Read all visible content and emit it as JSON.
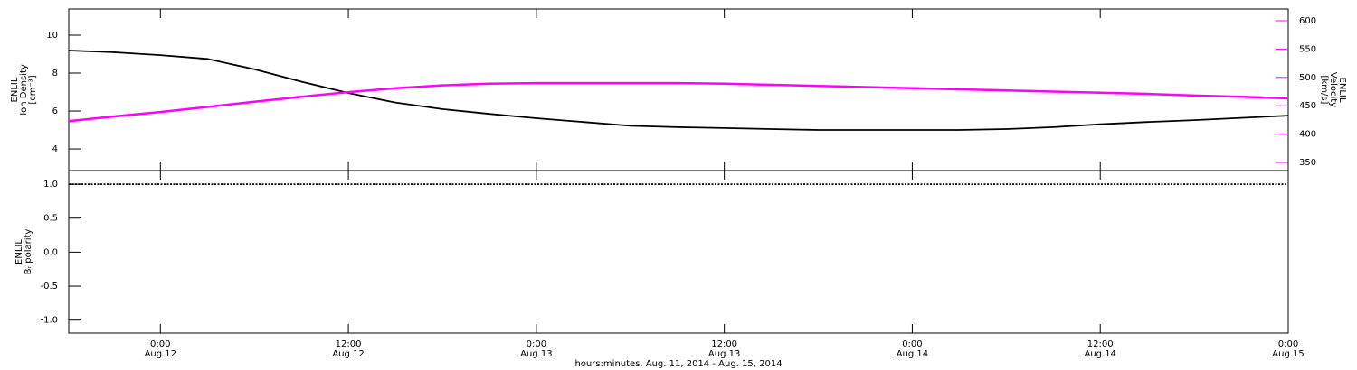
{
  "chart_data": [
    {
      "type": "line",
      "ylabel": [
        "ENLIL",
        "Ion Density",
        "[cm⁻³]"
      ],
      "y2label": [
        "ENLIL",
        "Velocity",
        "[km/s]"
      ],
      "x": [
        -5.85,
        -3,
        0,
        3,
        6,
        9,
        12,
        15,
        18,
        21,
        24,
        27,
        30,
        33,
        36,
        39,
        42,
        45,
        48,
        51,
        54,
        57,
        60,
        63,
        66,
        69,
        72
      ],
      "xlim": [
        -5.85,
        72
      ],
      "ylim": [
        2.86,
        11.38
      ],
      "yticks": [
        4,
        6,
        8,
        10
      ],
      "y2lim": [
        335.7,
        620.7
      ],
      "y2ticks": [
        350,
        400,
        450,
        500,
        550,
        600
      ],
      "series": [
        {
          "color": "#000000",
          "values": [
            9.19,
            9.1,
            8.95,
            8.75,
            8.2,
            7.55,
            6.95,
            6.45,
            6.1,
            5.85,
            5.62,
            5.42,
            5.22,
            5.15,
            5.1,
            5.05,
            5.0,
            5.0,
            5.0,
            5.0,
            5.05,
            5.15,
            5.3,
            5.42,
            5.52,
            5.64,
            5.76
          ]
        },
        {
          "color": "#ff00ff",
          "axis": "y2",
          "values": [
            423,
            431,
            439,
            448,
            457,
            466,
            474,
            481,
            486,
            489,
            490,
            490,
            490,
            490,
            489,
            487,
            485,
            483,
            481,
            479,
            477,
            475,
            473,
            471,
            468,
            466,
            463
          ]
        }
      ]
    },
    {
      "type": "line",
      "ylabel": [
        "ENLIL",
        "Bᵣ polarity"
      ],
      "xlabel": "hours:minutes, Aug. 11, 2014 - Aug. 15, 2014",
      "x": [
        -5.85,
        -3,
        0,
        3,
        6,
        9,
        12,
        15,
        18,
        21,
        24,
        27,
        30,
        33,
        36,
        39,
        42,
        45,
        48,
        51,
        54,
        57,
        60,
        63,
        66,
        69,
        72
      ],
      "xlim": [
        -5.85,
        72
      ],
      "xticks": [
        {
          "value": 0,
          "label": [
            "0:00",
            "Aug.12"
          ]
        },
        {
          "value": 12,
          "label": [
            "12:00",
            "Aug.12"
          ]
        },
        {
          "value": 24,
          "label": [
            "0:00",
            "Aug.13"
          ]
        },
        {
          "value": 36,
          "label": [
            "12:00",
            "Aug.13"
          ]
        },
        {
          "value": 48,
          "label": [
            "0:00",
            "Aug.14"
          ]
        },
        {
          "value": 60,
          "label": [
            "12:00",
            "Aug.14"
          ]
        },
        {
          "value": 72,
          "label": [
            "0:00",
            "Aug.15"
          ]
        }
      ],
      "ylim": [
        -1.19,
        1.2
      ],
      "yticks": [
        {
          "value": 1,
          "label": "1.0"
        },
        {
          "value": 0.5,
          "label": "0.5"
        },
        {
          "value": 0,
          "label": "0.0"
        },
        {
          "value": -0.5,
          "label": "-0.5"
        },
        {
          "value": -1,
          "label": "-1.0"
        }
      ],
      "series": [
        {
          "color": "#000000",
          "values": [
            1,
            1,
            1,
            1,
            1,
            1,
            1,
            1,
            1,
            1,
            1,
            1,
            1,
            1,
            1,
            1,
            1,
            1,
            1,
            1,
            1,
            1,
            1,
            1,
            1,
            1,
            1
          ]
        }
      ]
    }
  ]
}
